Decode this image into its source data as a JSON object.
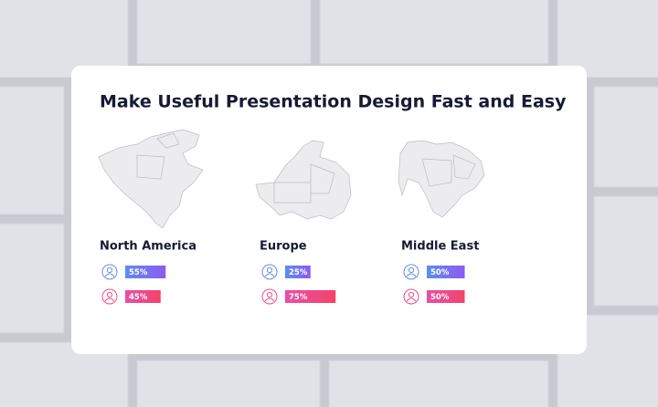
{
  "title": "Make Useful Presentation Design Fast and Easy",
  "regions": [
    {
      "name": "North America",
      "stats": [
        {
          "value": 55,
          "label": "55%"
        },
        {
          "value": 45,
          "label": "45%"
        }
      ]
    },
    {
      "name": "Europe",
      "stats": [
        {
          "value": 25,
          "label": "25%"
        },
        {
          "value": 75,
          "label": "75%"
        }
      ]
    },
    {
      "name": "Middle East",
      "stats": [
        {
          "value": 50,
          "label": "50%"
        },
        {
          "value": 50,
          "label": "50%"
        }
      ]
    }
  ]
}
